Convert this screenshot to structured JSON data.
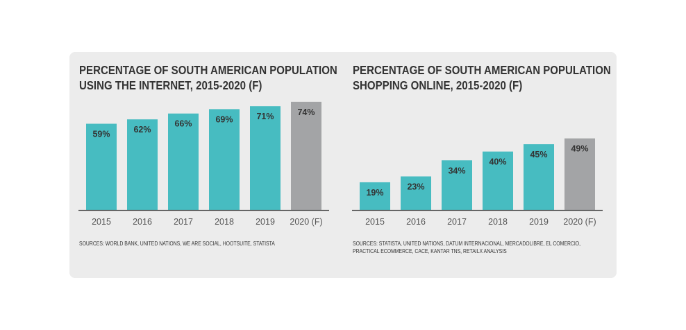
{
  "colors": {
    "bar": "#47bcc1",
    "forecast_bar": "#a3a4a6",
    "axis": "#555555",
    "label": "#333333",
    "panel": "#ececec"
  },
  "chart_data": [
    {
      "type": "bar",
      "title_lines": [
        "PERCENTAGE OF SOUTH AMERICAN POPULATION",
        "USING THE INTERNET, 2015-2020 (F)"
      ],
      "categories": [
        "2015",
        "2016",
        "2017",
        "2018",
        "2019",
        "2020 (F)"
      ],
      "values": [
        59,
        62,
        66,
        69,
        71,
        74
      ],
      "value_labels": [
        "59%",
        "62%",
        "66%",
        "69%",
        "71%",
        "74%"
      ],
      "forecast_index": 5,
      "ylim": [
        0,
        100
      ],
      "grid": false,
      "sources_lines": [
        "SOURCES: WORLD BANK, UNITED NATIONS, WE ARE SOCIAL, HOOTSUITE, STATISTA"
      ]
    },
    {
      "type": "bar",
      "title_lines": [
        "PERCENTAGE OF SOUTH AMERICAN POPULATION",
        "SHOPPING ONLINE, 2015-2020 (F)"
      ],
      "categories": [
        "2015",
        "2016",
        "2017",
        "2018",
        "2019",
        "2020 (F)"
      ],
      "values": [
        19,
        23,
        34,
        40,
        45,
        49
      ],
      "value_labels": [
        "19%",
        "23%",
        "34%",
        "40%",
        "45%",
        "49%"
      ],
      "forecast_index": 5,
      "ylim": [
        0,
        100
      ],
      "grid": false,
      "sources_lines": [
        "SOURCES: STATISTA, UNITED NATIONS, DATUM INTERNACIONAL, MERCADOLIBRE, EL COMERCIO,",
        "PRACTICAL ECOMMERCE, CACE, KANTAR TNS, RETAILX ANALYSIS"
      ]
    }
  ]
}
